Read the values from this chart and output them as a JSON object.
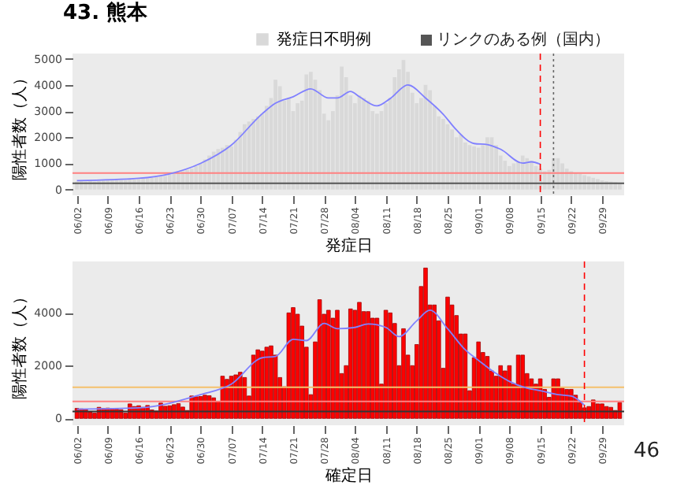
{
  "chart_data": [
    {
      "type": "bar",
      "title": "43. 熊本",
      "xlabel": "発症日",
      "ylabel": "陽性者数（人）",
      "legend": "top",
      "annotations": [
        "リンクのある例（国内）"
      ],
      "x": [
        "--06-02",
        "--06-03",
        "--06-04",
        "--06-05",
        "--06-06",
        "--06-07",
        "--06-08",
        "--06-09",
        "--06-10",
        "--06-11",
        "--06-12",
        "--06-13",
        "--06-14",
        "--06-15",
        "--06-16",
        "--06-17",
        "--06-18",
        "--06-19",
        "--06-20",
        "--06-21",
        "--06-22",
        "--06-23",
        "--06-24",
        "--06-25",
        "--06-26",
        "--06-27",
        "--06-28",
        "--06-29",
        "--06-30",
        "--07-01",
        "--07-02",
        "--07-03",
        "--07-04",
        "--07-05",
        "--07-06",
        "--07-07",
        "--07-08",
        "--07-09",
        "--07-10",
        "--07-11",
        "--07-12",
        "--07-13",
        "--07-14",
        "--07-15",
        "--07-16",
        "--07-17",
        "--07-18",
        "--07-19",
        "--07-20",
        "--07-21",
        "--07-22",
        "--07-23",
        "--07-24",
        "--07-25",
        "--07-26",
        "--07-27",
        "--07-28",
        "--07-29",
        "--07-30",
        "--07-31",
        "--08-01",
        "--08-02",
        "--08-03",
        "--08-04",
        "--08-05",
        "--08-06",
        "--08-07",
        "--08-08",
        "--08-09",
        "--08-10",
        "--08-11",
        "--08-12",
        "--08-13",
        "--08-14",
        "--08-15",
        "--08-16",
        "--08-17",
        "--08-18",
        "--08-19",
        "--08-20",
        "--08-21",
        "--08-22",
        "--08-23",
        "--08-24",
        "--08-25",
        "--08-26",
        "--08-27",
        "--08-28",
        "--08-29",
        "--08-30",
        "--08-31",
        "--09-01",
        "--09-02",
        "--09-03",
        "--09-04",
        "--09-05",
        "--09-06",
        "--09-07",
        "--09-08",
        "--09-09",
        "--09-10",
        "--09-11",
        "--09-12",
        "--09-13",
        "--09-14",
        "--09-15",
        "--09-16",
        "--09-17",
        "--09-18",
        "--09-19",
        "--09-20",
        "--09-21",
        "--09-22",
        "--09-23",
        "--09-24",
        "--09-25",
        "--09-26",
        "--09-27",
        "--09-28",
        "--09-29",
        "--09-30",
        "--10-01",
        "--10-02",
        "--10-03"
      ],
      "series": [
        {
          "name": "発症日不明例",
          "color": "#d9d9d9",
          "values": [
            300,
            320,
            310,
            330,
            300,
            340,
            350,
            360,
            350,
            380,
            370,
            360,
            390,
            380,
            400,
            420,
            430,
            450,
            480,
            500,
            520,
            560,
            600,
            650,
            700,
            750,
            800,
            900,
            1000,
            1150,
            1300,
            1450,
            1550,
            1600,
            1700,
            1650,
            1900,
            2200,
            2500,
            2600,
            2700,
            2800,
            2900,
            3200,
            3500,
            4200,
            3950,
            3400,
            3500,
            3000,
            3300,
            3400,
            4400,
            4500,
            4200,
            3800,
            2900,
            2650,
            3000,
            3600,
            4700,
            4300,
            3600,
            3300,
            3600,
            3500,
            3400,
            3000,
            2900,
            3000,
            3300,
            3500,
            4300,
            4600,
            4950,
            4500,
            3700,
            3300,
            3500,
            4000,
            3800,
            3200,
            2800,
            2700,
            2500,
            2300,
            2000,
            2100,
            1800,
            1700,
            1650,
            1600,
            1700,
            2000,
            2000,
            1700,
            1300,
            1100,
            900,
            1000,
            1050,
            1300,
            1200,
            1100,
            900,
            800,
            700,
            750,
            1200,
            1200,
            1000,
            800,
            700,
            650,
            600,
            550,
            500,
            450,
            400,
            350,
            320,
            300,
            280,
            260
          ]
        },
        {
          "type": "line",
          "color": "#8080ff",
          "x": [
            "--06-02",
            "--06-16",
            "--06-23",
            "--06-30",
            "--07-07",
            "--07-14",
            "--07-17",
            "--07-21",
            "--07-25",
            "--07-29",
            "--07-31",
            "--08-03",
            "--08-05",
            "--08-09",
            "--08-12",
            "--08-16",
            "--08-20",
            "--08-24",
            "--08-27",
            "--08-31",
            "--09-03",
            "--09-06",
            "--09-11",
            "--09-13",
            "--09-15"
          ],
          "values": [
            340,
            430,
            600,
            1000,
            1700,
            2900,
            3300,
            3550,
            3850,
            3500,
            3500,
            3750,
            3550,
            3200,
            3480,
            4000,
            3500,
            2880,
            2280,
            1760,
            1720,
            1540,
            1010,
            1060,
            970
          ]
        }
      ],
      "xlim": [
        "--06-01",
        "--10-04"
      ],
      "xticks": [
        {
          "value": "--06-02",
          "label": "06/02"
        },
        {
          "value": "--06-09",
          "label": "06/09"
        },
        {
          "value": "--06-16",
          "label": "06/16"
        },
        {
          "value": "--06-23",
          "label": "06/23"
        },
        {
          "value": "--06-30",
          "label": "06/30"
        },
        {
          "value": "--07-07",
          "label": "07/07"
        },
        {
          "value": "--07-14",
          "label": "07/14"
        },
        {
          "value": "--07-21",
          "label": "07/21"
        },
        {
          "value": "--07-28",
          "label": "07/28"
        },
        {
          "value": "--08-04",
          "label": "08/04"
        },
        {
          "value": "--08-11",
          "label": "08/11"
        },
        {
          "value": "--08-18",
          "label": "08/18"
        },
        {
          "value": "--08-25",
          "label": "08/25"
        },
        {
          "value": "--09-01",
          "label": "09/01"
        },
        {
          "value": "--09-08",
          "label": "09/08"
        },
        {
          "value": "--09-15",
          "label": "09/15"
        },
        {
          "value": "--09-22",
          "label": "09/22"
        },
        {
          "value": "--09-29",
          "label": "09/29"
        }
      ],
      "ylim": [
        -220,
        5200
      ],
      "yticks": [
        0,
        1000,
        2000,
        3000,
        4000,
        5000
      ],
      "ref_lines": [
        {
          "axis": "y",
          "value": 630,
          "color": "#ff8080"
        },
        {
          "axis": "y",
          "value": 240,
          "color": "#555555"
        },
        {
          "axis": "x",
          "value": "--09-15",
          "color": "#ff0000",
          "line_style": "dashed"
        },
        {
          "axis": "x",
          "value": "--09-18",
          "color": "#666666",
          "line_style": "dotted"
        }
      ]
    },
    {
      "type": "bar",
      "xlabel": "確定日",
      "ylabel": "陽性者数（人）",
      "annotations": [
        "46"
      ],
      "x": [
        "--06-02",
        "--06-03",
        "--06-04",
        "--06-05",
        "--06-06",
        "--06-07",
        "--06-08",
        "--06-09",
        "--06-10",
        "--06-11",
        "--06-12",
        "--06-13",
        "--06-14",
        "--06-15",
        "--06-16",
        "--06-17",
        "--06-18",
        "--06-19",
        "--06-20",
        "--06-21",
        "--06-22",
        "--06-23",
        "--06-24",
        "--06-25",
        "--06-26",
        "--06-27",
        "--06-28",
        "--06-29",
        "--06-30",
        "--07-01",
        "--07-02",
        "--07-03",
        "--07-04",
        "--07-05",
        "--07-06",
        "--07-07",
        "--07-08",
        "--07-09",
        "--07-10",
        "--07-11",
        "--07-12",
        "--07-13",
        "--07-14",
        "--07-15",
        "--07-16",
        "--07-17",
        "--07-18",
        "--07-19",
        "--07-20",
        "--07-21",
        "--07-22",
        "--07-23",
        "--07-24",
        "--07-25",
        "--07-26",
        "--07-27",
        "--07-28",
        "--07-29",
        "--07-30",
        "--07-31",
        "--08-01",
        "--08-02",
        "--08-03",
        "--08-04",
        "--08-05",
        "--08-06",
        "--08-07",
        "--08-08",
        "--08-09",
        "--08-10",
        "--08-11",
        "--08-12",
        "--08-13",
        "--08-14",
        "--08-15",
        "--08-16",
        "--08-17",
        "--08-18",
        "--08-19",
        "--08-20",
        "--08-21",
        "--08-22",
        "--08-23",
        "--08-24",
        "--08-25",
        "--08-26",
        "--08-27",
        "--08-28",
        "--08-29",
        "--08-30",
        "--08-31",
        "--09-01",
        "--09-02",
        "--09-03",
        "--09-04",
        "--09-05",
        "--09-06",
        "--09-07",
        "--09-08",
        "--09-09",
        "--09-10",
        "--09-11",
        "--09-12",
        "--09-13",
        "--09-14",
        "--09-15",
        "--09-16",
        "--09-17",
        "--09-18",
        "--09-19",
        "--09-20",
        "--09-21",
        "--09-22",
        "--09-23",
        "--09-24",
        "--09-25",
        "--09-26",
        "--09-27",
        "--09-28",
        "--09-29",
        "--09-30",
        "--10-01",
        "--10-02",
        "--10-03"
      ],
      "series": [
        {
          "color": "#ff0000",
          "values": [
            380,
            360,
            350,
            250,
            200,
            420,
            380,
            390,
            380,
            350,
            330,
            200,
            550,
            450,
            480,
            420,
            490,
            320,
            280,
            580,
            460,
            480,
            520,
            560,
            430,
            300,
            850,
            820,
            830,
            880,
            860,
            780,
            650,
            1600,
            1480,
            1600,
            1650,
            1750,
            1550,
            850,
            2400,
            2600,
            2550,
            2700,
            2750,
            2400,
            1550,
            1200,
            4000,
            4200,
            3950,
            3500,
            2700,
            900,
            2900,
            4500,
            3950,
            4100,
            3800,
            4100,
            1700,
            2000,
            4150,
            4100,
            4400,
            4050,
            4050,
            3800,
            3800,
            1300,
            4100,
            4000,
            3600,
            2000,
            3400,
            2400,
            2000,
            2800,
            5000,
            5700,
            4300,
            4300,
            3700,
            1900,
            4600,
            4300,
            3900,
            3200,
            3200,
            1050,
            2300,
            2900,
            2500,
            2350,
            1800,
            1600,
            2000,
            1800,
            2000,
            1300,
            2400,
            2400,
            1700,
            1500,
            1300,
            1500,
            1100,
            800,
            1500,
            1500,
            1150,
            1100,
            1100,
            880,
            600,
            400,
            450,
            700,
            550,
            550,
            450,
            420,
            300,
            600
          ]
        },
        {
          "type": "line",
          "color": "#8080ff",
          "x": [
            "--06-02",
            "--06-16",
            "--06-30",
            "--07-07",
            "--07-14",
            "--07-17",
            "--07-21",
            "--07-24",
            "--07-28",
            "--07-31",
            "--08-04",
            "--08-07",
            "--08-11",
            "--08-14",
            "--08-18",
            "--08-21",
            "--08-25",
            "--08-29",
            "--09-01",
            "--09-05",
            "--09-08",
            "--09-12",
            "--09-15",
            "--09-19",
            "--09-22",
            "--09-25"
          ],
          "values": [
            350,
            400,
            900,
            1300,
            2300,
            2350,
            3000,
            2950,
            3600,
            3400,
            3450,
            3580,
            3450,
            3100,
            3700,
            4100,
            3400,
            2600,
            2200,
            1700,
            1400,
            1150,
            1050,
            900,
            850,
            500
          ]
        }
      ],
      "xlim": [
        "--06-01",
        "--10-04"
      ],
      "xticks": [
        {
          "value": "--06-02",
          "label": "06/02"
        },
        {
          "value": "--06-09",
          "label": "06/09"
        },
        {
          "value": "--06-16",
          "label": "06/16"
        },
        {
          "value": "--06-23",
          "label": "06/23"
        },
        {
          "value": "--06-30",
          "label": "06/30"
        },
        {
          "value": "--07-07",
          "label": "07/07"
        },
        {
          "value": "--07-14",
          "label": "07/14"
        },
        {
          "value": "--07-21",
          "label": "07/21"
        },
        {
          "value": "--07-28",
          "label": "07/28"
        },
        {
          "value": "--08-04",
          "label": "08/04"
        },
        {
          "value": "--08-11",
          "label": "08/11"
        },
        {
          "value": "--08-18",
          "label": "08/18"
        },
        {
          "value": "--08-25",
          "label": "08/25"
        },
        {
          "value": "--09-01",
          "label": "09/01"
        },
        {
          "value": "--09-08",
          "label": "09/08"
        },
        {
          "value": "--09-15",
          "label": "09/15"
        },
        {
          "value": "--09-22",
          "label": "09/22"
        },
        {
          "value": "--09-29",
          "label": "09/29"
        }
      ],
      "ylim": [
        -260,
        5950
      ],
      "yticks": [
        0,
        2000,
        4000
      ],
      "ref_lines": [
        {
          "axis": "y",
          "value": 1180,
          "color": "#f5c06b"
        },
        {
          "axis": "y",
          "value": 640,
          "color": "#ff8080"
        },
        {
          "axis": "y",
          "value": 260,
          "color": "#333333"
        },
        {
          "axis": "x",
          "value": "--09-25",
          "color": "#ff0000",
          "line_style": "dashed"
        }
      ]
    }
  ]
}
